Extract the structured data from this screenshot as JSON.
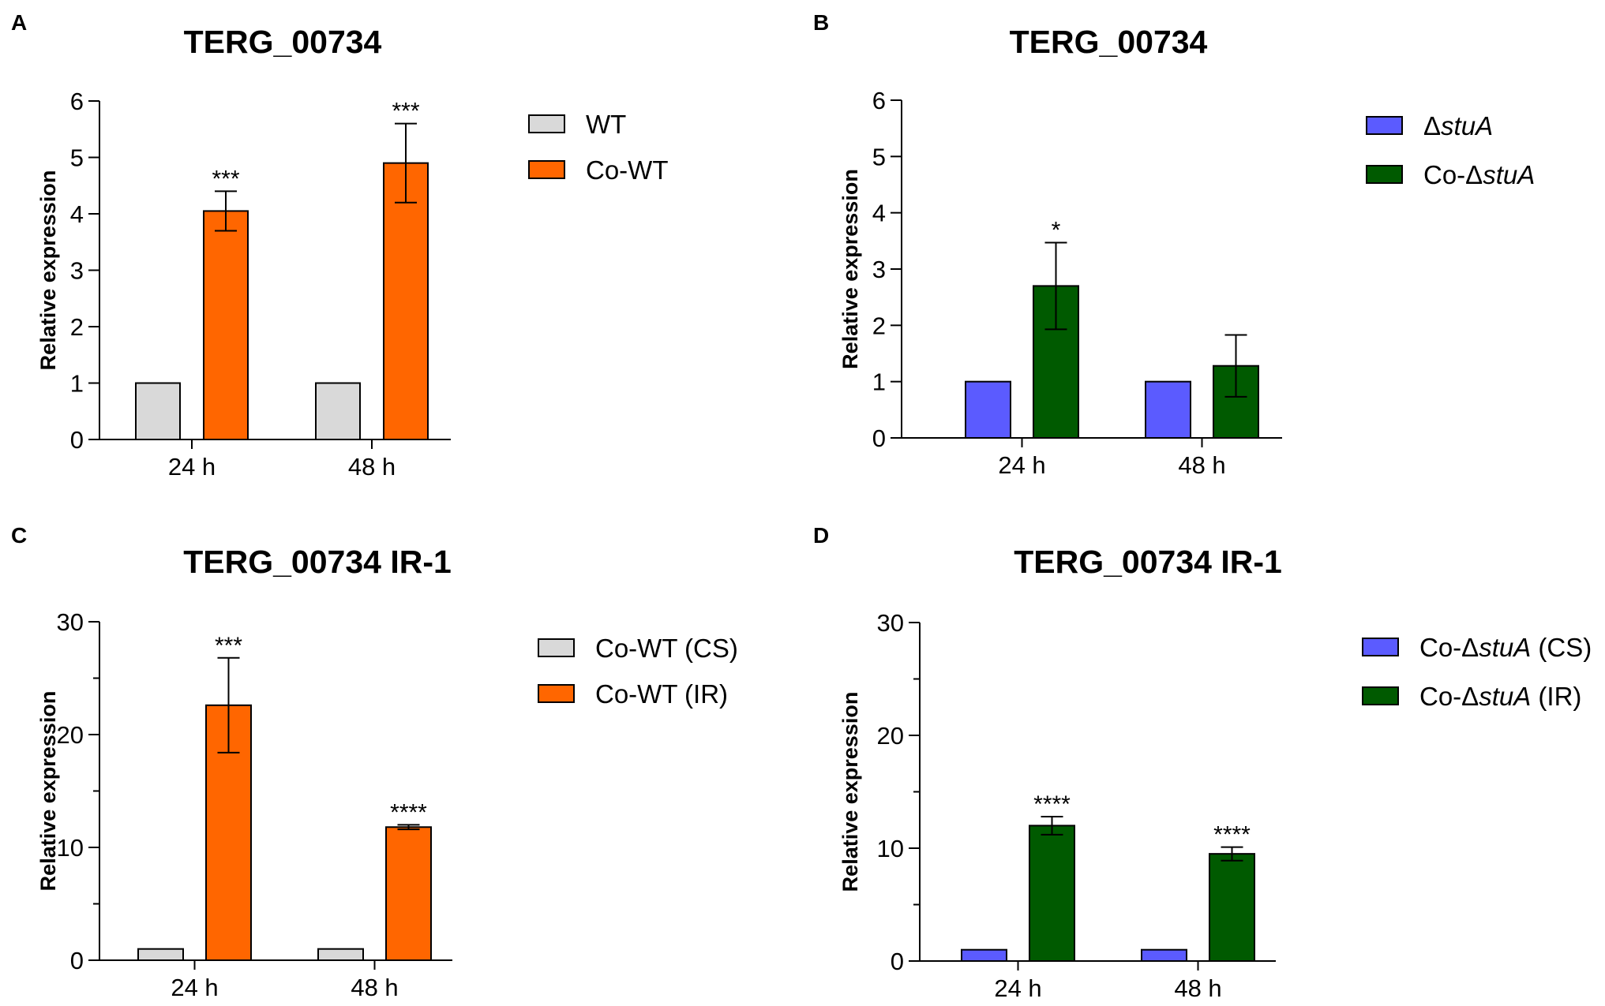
{
  "chart_data": [
    {
      "panel": "A",
      "type": "bar",
      "title": "TERG_00734",
      "ylabel": "Relative expression",
      "xlabel": "",
      "categories": [
        "24 h",
        "48 h"
      ],
      "ylim": [
        0,
        6
      ],
      "yticks": [
        "0",
        "1",
        "2",
        "3",
        "4",
        "5",
        "6"
      ],
      "series": [
        {
          "name": "WT",
          "name_parts": [
            "WT"
          ],
          "color": "#d9d9d9",
          "values": [
            1,
            1
          ],
          "errors": [
            0,
            0
          ],
          "sig": [
            "",
            ""
          ]
        },
        {
          "name": "Co-WT",
          "name_parts": [
            "Co-WT"
          ],
          "color": "#ff6600",
          "values": [
            4.05,
            4.9
          ],
          "errors": [
            0.35,
            0.7
          ],
          "sig": [
            "***",
            "***"
          ]
        }
      ],
      "legend": "right"
    },
    {
      "panel": "B",
      "type": "bar",
      "title": "TERG_00734",
      "ylabel": "Relative expression",
      "xlabel": "",
      "categories": [
        "24 h",
        "48 h"
      ],
      "ylim": [
        0,
        6
      ],
      "yticks": [
        "0",
        "1",
        "2",
        "3",
        "4",
        "5",
        "6"
      ],
      "series": [
        {
          "name": "ΔstuA",
          "name_parts": [
            "Δ",
            "stuA"
          ],
          "color": "#5b5bff",
          "values": [
            1,
            1
          ],
          "errors": [
            0,
            0
          ],
          "sig": [
            "",
            ""
          ]
        },
        {
          "name": "Co-ΔstuA",
          "name_parts": [
            "Co-Δ",
            "stuA"
          ],
          "color": "#005a00",
          "values": [
            2.7,
            1.28
          ],
          "errors": [
            0.77,
            0.55
          ],
          "sig": [
            "*",
            ""
          ]
        }
      ],
      "legend": "right"
    },
    {
      "panel": "C",
      "type": "bar",
      "title": "TERG_00734 IR-1",
      "ylabel": "Relative expression",
      "xlabel": "",
      "categories": [
        "24 h",
        "48 h"
      ],
      "ylim": [
        0,
        30
      ],
      "yticks": [
        "0",
        "10",
        "20",
        "30"
      ],
      "series": [
        {
          "name": "Co-WT (CS)",
          "name_parts": [
            "Co-WT (CS)"
          ],
          "color": "#d9d9d9",
          "values": [
            1,
            1
          ],
          "errors": [
            0,
            0
          ],
          "sig": [
            "",
            ""
          ]
        },
        {
          "name": "Co-WT (IR)",
          "name_parts": [
            "Co-WT (IR)"
          ],
          "color": "#ff6600",
          "values": [
            22.6,
            11.8
          ],
          "errors": [
            4.2,
            0.2
          ],
          "sig": [
            "***",
            "****"
          ]
        }
      ],
      "legend": "right"
    },
    {
      "panel": "D",
      "type": "bar",
      "title": "TERG_00734 IR-1",
      "ylabel": "Relative expression",
      "xlabel": "",
      "categories": [
        "24 h",
        "48 h"
      ],
      "ylim": [
        0,
        30
      ],
      "yticks": [
        "0",
        "10",
        "20",
        "30"
      ],
      "series": [
        {
          "name": "Co-ΔstuA (CS)",
          "name_parts": [
            "Co-Δ",
            "stuA",
            " (CS)"
          ],
          "color": "#5b5bff",
          "values": [
            1,
            1
          ],
          "errors": [
            0,
            0
          ],
          "sig": [
            "",
            ""
          ]
        },
        {
          "name": "Co-ΔstuA (IR)",
          "name_parts": [
            "Co-Δ",
            "stuA",
            " (IR)"
          ],
          "color": "#005a00",
          "values": [
            12,
            9.5
          ],
          "errors": [
            0.8,
            0.6
          ],
          "sig": [
            "****",
            "****"
          ]
        }
      ],
      "legend": "right"
    }
  ]
}
